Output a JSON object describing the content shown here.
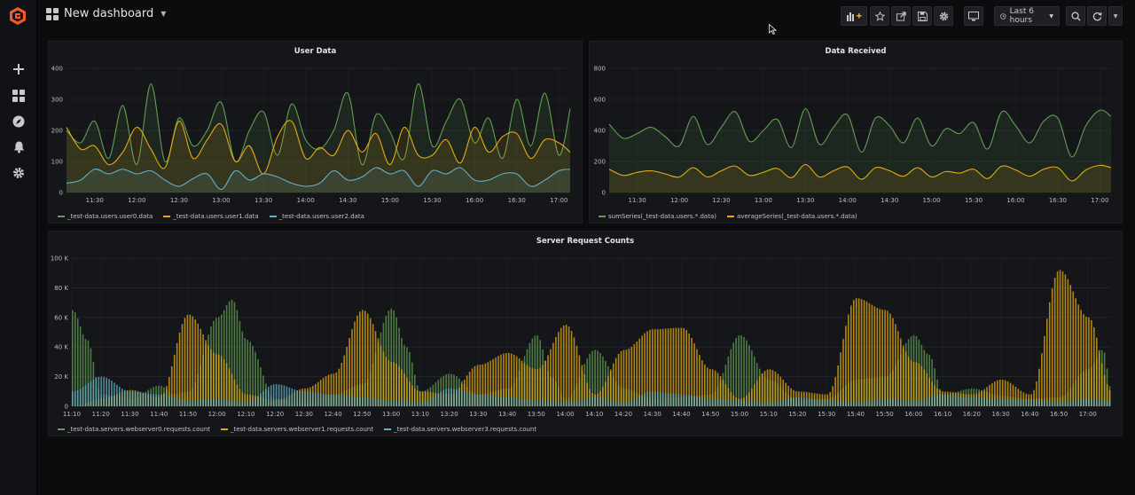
{
  "topbar": {
    "dashboard_title": "New dashboard",
    "time_range": "Last 6 hours",
    "icons": [
      "add-panel-icon",
      "star-icon",
      "share-icon",
      "save-icon",
      "settings-icon",
      "tv-mode-icon",
      "clock-icon",
      "zoom-out-icon",
      "refresh-icon",
      "refresh-interval-caret-icon"
    ]
  },
  "sidebar": {
    "icons": [
      "grafana-logo-icon",
      "plus-icon",
      "dashboards-icon",
      "explore-compass-icon",
      "alerting-bell-icon",
      "gear-icon"
    ]
  },
  "colors": {
    "green": "#629e51",
    "yellow": "#e5ac0e",
    "cyan": "#64b0c8",
    "background": "#0b0c0e",
    "panel": "#141619"
  },
  "panels": {
    "user_data": {
      "title": "User Data",
      "legend": [
        "_test-data.users.user0.data",
        "_test-data.users.user1.data",
        "_test-data.users.user2.data"
      ]
    },
    "data_received": {
      "title": "Data Received",
      "legend": [
        "sumSeries(_test-data.users.*.data)",
        "averageSeries(_test-data.users.*.data)"
      ]
    },
    "server_requests": {
      "title": "Server Request Counts",
      "legend": [
        "_test-data.servers.webserver0.requests.count",
        "_test-data.servers.webserver1.requests.count",
        "_test-data.servers.webserver3.requests.count"
      ]
    }
  },
  "chart_data": [
    {
      "type": "area",
      "title": "User Data",
      "ylim": [
        0,
        400
      ],
      "yticks": [
        "0",
        "100",
        "200",
        "300",
        "400"
      ],
      "xticks": [
        "11:30",
        "12:00",
        "12:30",
        "13:00",
        "13:30",
        "14:00",
        "14:30",
        "15:00",
        "15:30",
        "16:00",
        "16:30",
        "17:00"
      ],
      "x_range": [
        "11:10",
        "17:08"
      ],
      "grid": true,
      "legend_position": "bottom-left",
      "series": [
        {
          "name": "_test-data.users.user0.data",
          "color": "#629e51",
          "x": [
            "11:10",
            "11:20",
            "11:30",
            "11:40",
            "11:50",
            "12:00",
            "12:10",
            "12:20",
            "12:30",
            "12:40",
            "12:50",
            "13:00",
            "13:10",
            "13:20",
            "13:30",
            "13:40",
            "13:50",
            "14:00",
            "14:10",
            "14:20",
            "14:30",
            "14:40",
            "14:50",
            "15:00",
            "15:10",
            "15:20",
            "15:30",
            "15:40",
            "15:50",
            "16:00",
            "16:10",
            "16:20",
            "16:30",
            "16:40",
            "16:50",
            "17:00",
            "17:08"
          ],
          "y": [
            200,
            160,
            230,
            110,
            280,
            90,
            350,
            100,
            240,
            150,
            200,
            290,
            100,
            200,
            260,
            120,
            285,
            170,
            140,
            200,
            320,
            90,
            250,
            195,
            110,
            350,
            150,
            230,
            300,
            160,
            240,
            110,
            300,
            150,
            320,
            120,
            270
          ]
        },
        {
          "name": "_test-data.users.user1.data",
          "color": "#e5ac0e",
          "x": [
            "11:10",
            "11:20",
            "11:30",
            "11:40",
            "11:50",
            "12:00",
            "12:10",
            "12:20",
            "12:30",
            "12:40",
            "12:50",
            "13:00",
            "13:10",
            "13:20",
            "13:30",
            "13:40",
            "13:50",
            "14:00",
            "14:10",
            "14:20",
            "14:30",
            "14:40",
            "14:50",
            "15:00",
            "15:10",
            "15:20",
            "15:30",
            "15:40",
            "15:50",
            "16:00",
            "16:10",
            "16:20",
            "16:30",
            "16:40",
            "16:50",
            "17:00",
            "17:08"
          ],
          "y": [
            210,
            140,
            150,
            90,
            130,
            210,
            140,
            80,
            230,
            110,
            170,
            220,
            100,
            150,
            60,
            180,
            230,
            110,
            145,
            120,
            200,
            130,
            190,
            90,
            210,
            120,
            120,
            170,
            95,
            210,
            130,
            180,
            190,
            110,
            170,
            160,
            130
          ]
        },
        {
          "name": "_test-data.users.user2.data",
          "color": "#64b0c8",
          "x": [
            "11:10",
            "11:20",
            "11:30",
            "11:40",
            "11:50",
            "12:00",
            "12:10",
            "12:20",
            "12:30",
            "12:40",
            "12:50",
            "13:00",
            "13:10",
            "13:20",
            "13:30",
            "13:40",
            "13:50",
            "14:00",
            "14:10",
            "14:20",
            "14:30",
            "14:40",
            "14:50",
            "15:00",
            "15:10",
            "15:20",
            "15:30",
            "15:40",
            "15:50",
            "16:00",
            "16:10",
            "16:20",
            "16:30",
            "16:40",
            "16:50",
            "17:00",
            "17:08"
          ],
          "y": [
            30,
            40,
            75,
            60,
            75,
            60,
            70,
            40,
            20,
            45,
            60,
            10,
            70,
            40,
            60,
            50,
            30,
            20,
            30,
            70,
            40,
            50,
            80,
            60,
            70,
            20,
            70,
            60,
            80,
            40,
            40,
            60,
            60,
            20,
            40,
            70,
            75
          ]
        }
      ]
    },
    {
      "type": "area",
      "title": "Data Received",
      "ylim": [
        0,
        800
      ],
      "yticks": [
        "0",
        "200",
        "400",
        "600",
        "800"
      ],
      "xticks": [
        "11:30",
        "12:00",
        "12:30",
        "13:00",
        "13:30",
        "14:00",
        "14:30",
        "15:00",
        "15:30",
        "16:00",
        "16:30",
        "17:00"
      ],
      "x_range": [
        "11:10",
        "17:08"
      ],
      "grid": true,
      "legend_position": "bottom-left",
      "series": [
        {
          "name": "sumSeries(_test-data.users.*.data)",
          "color": "#629e51",
          "x": [
            "11:10",
            "11:20",
            "11:30",
            "11:40",
            "11:50",
            "12:00",
            "12:10",
            "12:20",
            "12:30",
            "12:40",
            "12:50",
            "13:00",
            "13:10",
            "13:20",
            "13:30",
            "13:40",
            "13:50",
            "14:00",
            "14:10",
            "14:20",
            "14:30",
            "14:40",
            "14:50",
            "15:00",
            "15:10",
            "15:20",
            "15:30",
            "15:40",
            "15:50",
            "16:00",
            "16:10",
            "16:20",
            "16:30",
            "16:40",
            "16:50",
            "17:00",
            "17:08"
          ],
          "y": [
            440,
            350,
            380,
            420,
            360,
            300,
            490,
            310,
            420,
            520,
            330,
            400,
            470,
            290,
            540,
            310,
            420,
            500,
            260,
            480,
            430,
            320,
            480,
            300,
            410,
            380,
            450,
            280,
            520,
            430,
            320,
            460,
            480,
            230,
            430,
            530,
            490
          ]
        },
        {
          "name": "averageSeries(_test-data.users.*.data)",
          "color": "#e5ac0e",
          "x": [
            "11:10",
            "11:20",
            "11:30",
            "11:40",
            "11:50",
            "12:00",
            "12:10",
            "12:20",
            "12:30",
            "12:40",
            "12:50",
            "13:00",
            "13:10",
            "13:20",
            "13:30",
            "13:40",
            "13:50",
            "14:00",
            "14:10",
            "14:20",
            "14:30",
            "14:40",
            "14:50",
            "15:00",
            "15:10",
            "15:20",
            "15:30",
            "15:40",
            "15:50",
            "16:00",
            "16:10",
            "16:20",
            "16:30",
            "16:40",
            "16:50",
            "17:00",
            "17:08"
          ],
          "y": [
            150,
            110,
            130,
            140,
            120,
            100,
            160,
            100,
            140,
            170,
            110,
            130,
            155,
            95,
            180,
            100,
            140,
            165,
            85,
            160,
            140,
            105,
            160,
            100,
            135,
            125,
            150,
            90,
            170,
            145,
            105,
            150,
            160,
            75,
            145,
            175,
            160
          ]
        }
      ]
    },
    {
      "type": "bar",
      "title": "Server Request Counts",
      "ylim": [
        0,
        100000
      ],
      "yticks": [
        "0",
        "20 K",
        "40 K",
        "60 K",
        "80 K",
        "100 K"
      ],
      "xticks": [
        "11:10",
        "11:20",
        "11:30",
        "11:40",
        "11:50",
        "12:00",
        "12:10",
        "12:20",
        "12:30",
        "12:40",
        "12:50",
        "13:00",
        "13:10",
        "13:20",
        "13:30",
        "13:40",
        "13:50",
        "14:00",
        "14:10",
        "14:20",
        "14:30",
        "14:40",
        "14:50",
        "15:00",
        "15:10",
        "15:20",
        "15:30",
        "15:40",
        "15:50",
        "16:00",
        "16:10",
        "16:20",
        "16:30",
        "16:40",
        "16:50",
        "17:00"
      ],
      "x_range": [
        "11:10",
        "17:08"
      ],
      "stacked": false,
      "grid": true,
      "legend_position": "bottom-left",
      "series": [
        {
          "name": "_test-data.servers.webserver0.requests.count",
          "color": "#629e51",
          "x": [
            "11:10",
            "11:15",
            "11:20",
            "11:30",
            "11:40",
            "11:45",
            "11:50",
            "12:00",
            "12:05",
            "12:10",
            "12:20",
            "12:30",
            "12:40",
            "12:50",
            "13:00",
            "13:05",
            "13:10",
            "13:20",
            "13:30",
            "13:40",
            "13:50",
            "13:55",
            "14:00",
            "14:10",
            "14:20",
            "14:30",
            "14:40",
            "14:50",
            "15:00",
            "15:10",
            "15:20",
            "15:30",
            "15:40",
            "15:50",
            "16:00",
            "16:05",
            "16:10",
            "16:20",
            "16:30",
            "16:40",
            "16:50",
            "17:00",
            "17:05",
            "17:08"
          ],
          "y": [
            65000,
            45000,
            8000,
            5000,
            14000,
            8000,
            10000,
            60000,
            72000,
            45000,
            5000,
            3000,
            8000,
            15000,
            66000,
            40000,
            10000,
            22000,
            8000,
            12000,
            48000,
            20000,
            5000,
            38000,
            12000,
            5000,
            6000,
            8000,
            48000,
            18000,
            4000,
            5000,
            18000,
            20000,
            48000,
            35000,
            8000,
            12000,
            7000,
            5000,
            6000,
            25000,
            38000,
            10000
          ]
        },
        {
          "name": "_test-data.servers.webserver1.requests.count",
          "color": "#e5ac0e",
          "x": [
            "11:10",
            "11:20",
            "11:30",
            "11:40",
            "11:50",
            "12:00",
            "12:10",
            "12:20",
            "12:30",
            "12:40",
            "12:50",
            "13:00",
            "13:10",
            "13:20",
            "13:30",
            "13:40",
            "13:50",
            "14:00",
            "14:10",
            "14:20",
            "14:30",
            "14:40",
            "14:50",
            "15:00",
            "15:10",
            "15:20",
            "15:30",
            "15:40",
            "15:50",
            "16:00",
            "16:10",
            "16:20",
            "16:30",
            "16:40",
            "16:50",
            "17:00",
            "17:08"
          ],
          "y": [
            0,
            5000,
            11000,
            6000,
            62000,
            35000,
            8000,
            4000,
            12000,
            22000,
            65000,
            30000,
            10000,
            8000,
            28000,
            36000,
            25000,
            55000,
            8000,
            38000,
            52000,
            53000,
            25000,
            5000,
            25000,
            10000,
            8000,
            73000,
            65000,
            30000,
            10000,
            8000,
            18000,
            8000,
            92000,
            60000,
            10000
          ]
        },
        {
          "name": "_test-data.servers.webserver3.requests.count",
          "color": "#64b0c8",
          "x": [
            "11:10",
            "11:20",
            "11:30",
            "11:40",
            "11:50",
            "12:00",
            "12:10",
            "12:20",
            "12:30",
            "12:40",
            "12:50",
            "13:00",
            "13:10",
            "13:20",
            "13:30",
            "13:40",
            "13:50",
            "14:00",
            "14:10",
            "14:20",
            "14:30",
            "14:40",
            "14:50",
            "15:00",
            "15:10",
            "15:20",
            "15:30",
            "15:40",
            "15:50",
            "16:00",
            "16:10",
            "16:20",
            "16:30",
            "16:40",
            "16:50",
            "17:00",
            "17:08"
          ],
          "y": [
            10000,
            20000,
            10000,
            8000,
            4000,
            5000,
            3000,
            15000,
            10000,
            8000,
            6000,
            4000,
            3000,
            12000,
            8000,
            6000,
            4000,
            3000,
            6000,
            3000,
            10000,
            8000,
            5000,
            4000,
            3000,
            6000,
            4000,
            3000,
            5000,
            4000,
            8000,
            6000,
            5000,
            4000,
            3000,
            5000,
            4000
          ]
        }
      ]
    }
  ]
}
